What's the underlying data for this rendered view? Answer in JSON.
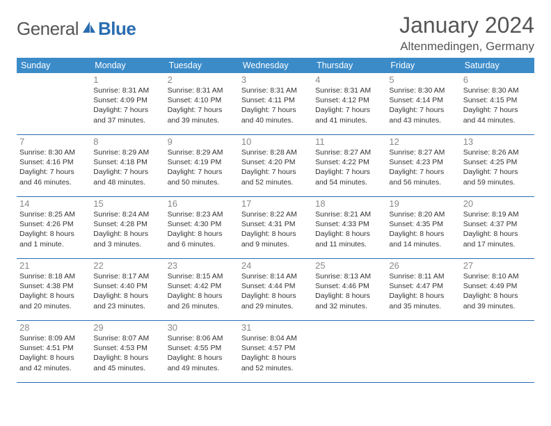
{
  "logo": {
    "part1": "General",
    "part2": "Blue"
  },
  "title": "January 2024",
  "location": "Altenmedingen, Germany",
  "colors": {
    "header_bg": "#3b8bc9",
    "border": "#2a6cb0",
    "daynum": "#888888",
    "text": "#333333",
    "title": "#555555"
  },
  "dow": [
    "Sunday",
    "Monday",
    "Tuesday",
    "Wednesday",
    "Thursday",
    "Friday",
    "Saturday"
  ],
  "weeks": [
    [
      null,
      {
        "n": "1",
        "sr": "8:31 AM",
        "ss": "4:09 PM",
        "dl": "7 hours and 37 minutes."
      },
      {
        "n": "2",
        "sr": "8:31 AM",
        "ss": "4:10 PM",
        "dl": "7 hours and 39 minutes."
      },
      {
        "n": "3",
        "sr": "8:31 AM",
        "ss": "4:11 PM",
        "dl": "7 hours and 40 minutes."
      },
      {
        "n": "4",
        "sr": "8:31 AM",
        "ss": "4:12 PM",
        "dl": "7 hours and 41 minutes."
      },
      {
        "n": "5",
        "sr": "8:30 AM",
        "ss": "4:14 PM",
        "dl": "7 hours and 43 minutes."
      },
      {
        "n": "6",
        "sr": "8:30 AM",
        "ss": "4:15 PM",
        "dl": "7 hours and 44 minutes."
      }
    ],
    [
      {
        "n": "7",
        "sr": "8:30 AM",
        "ss": "4:16 PM",
        "dl": "7 hours and 46 minutes."
      },
      {
        "n": "8",
        "sr": "8:29 AM",
        "ss": "4:18 PM",
        "dl": "7 hours and 48 minutes."
      },
      {
        "n": "9",
        "sr": "8:29 AM",
        "ss": "4:19 PM",
        "dl": "7 hours and 50 minutes."
      },
      {
        "n": "10",
        "sr": "8:28 AM",
        "ss": "4:20 PM",
        "dl": "7 hours and 52 minutes."
      },
      {
        "n": "11",
        "sr": "8:27 AM",
        "ss": "4:22 PM",
        "dl": "7 hours and 54 minutes."
      },
      {
        "n": "12",
        "sr": "8:27 AM",
        "ss": "4:23 PM",
        "dl": "7 hours and 56 minutes."
      },
      {
        "n": "13",
        "sr": "8:26 AM",
        "ss": "4:25 PM",
        "dl": "7 hours and 59 minutes."
      }
    ],
    [
      {
        "n": "14",
        "sr": "8:25 AM",
        "ss": "4:26 PM",
        "dl": "8 hours and 1 minute."
      },
      {
        "n": "15",
        "sr": "8:24 AM",
        "ss": "4:28 PM",
        "dl": "8 hours and 3 minutes."
      },
      {
        "n": "16",
        "sr": "8:23 AM",
        "ss": "4:30 PM",
        "dl": "8 hours and 6 minutes."
      },
      {
        "n": "17",
        "sr": "8:22 AM",
        "ss": "4:31 PM",
        "dl": "8 hours and 9 minutes."
      },
      {
        "n": "18",
        "sr": "8:21 AM",
        "ss": "4:33 PM",
        "dl": "8 hours and 11 minutes."
      },
      {
        "n": "19",
        "sr": "8:20 AM",
        "ss": "4:35 PM",
        "dl": "8 hours and 14 minutes."
      },
      {
        "n": "20",
        "sr": "8:19 AM",
        "ss": "4:37 PM",
        "dl": "8 hours and 17 minutes."
      }
    ],
    [
      {
        "n": "21",
        "sr": "8:18 AM",
        "ss": "4:38 PM",
        "dl": "8 hours and 20 minutes."
      },
      {
        "n": "22",
        "sr": "8:17 AM",
        "ss": "4:40 PM",
        "dl": "8 hours and 23 minutes."
      },
      {
        "n": "23",
        "sr": "8:15 AM",
        "ss": "4:42 PM",
        "dl": "8 hours and 26 minutes."
      },
      {
        "n": "24",
        "sr": "8:14 AM",
        "ss": "4:44 PM",
        "dl": "8 hours and 29 minutes."
      },
      {
        "n": "25",
        "sr": "8:13 AM",
        "ss": "4:46 PM",
        "dl": "8 hours and 32 minutes."
      },
      {
        "n": "26",
        "sr": "8:11 AM",
        "ss": "4:47 PM",
        "dl": "8 hours and 35 minutes."
      },
      {
        "n": "27",
        "sr": "8:10 AM",
        "ss": "4:49 PM",
        "dl": "8 hours and 39 minutes."
      }
    ],
    [
      {
        "n": "28",
        "sr": "8:09 AM",
        "ss": "4:51 PM",
        "dl": "8 hours and 42 minutes."
      },
      {
        "n": "29",
        "sr": "8:07 AM",
        "ss": "4:53 PM",
        "dl": "8 hours and 45 minutes."
      },
      {
        "n": "30",
        "sr": "8:06 AM",
        "ss": "4:55 PM",
        "dl": "8 hours and 49 minutes."
      },
      {
        "n": "31",
        "sr": "8:04 AM",
        "ss": "4:57 PM",
        "dl": "8 hours and 52 minutes."
      },
      null,
      null,
      null
    ]
  ]
}
